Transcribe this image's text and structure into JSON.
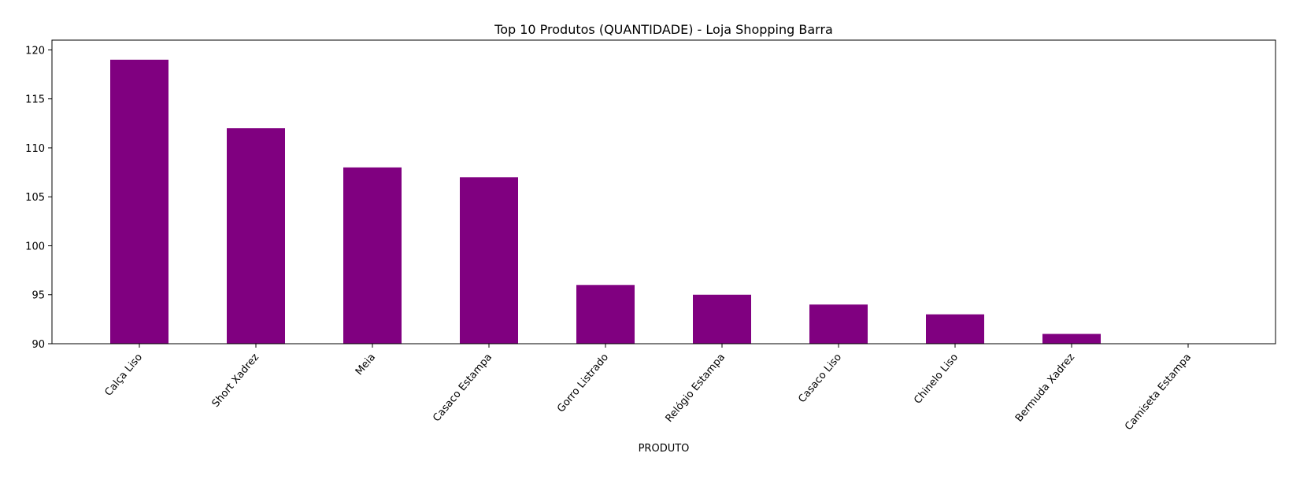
{
  "chart_data": {
    "type": "bar",
    "title": "Top 10 Produtos (QUANTIDADE) - Loja Shopping Barra",
    "xlabel": "PRODUTO",
    "ylabel": "",
    "categories": [
      "Calça Liso",
      "Short Xadrez",
      "Meia",
      "Casaco Estampa",
      "Gorro Listrado",
      "Relógio Estampa",
      "Casaco Liso",
      "Chinelo Liso",
      "Bermuda Xadrez",
      "Camiseta Estampa"
    ],
    "values": [
      119,
      112,
      108,
      107,
      96,
      95,
      94,
      93,
      91,
      90
    ],
    "ylim": [
      90,
      121
    ],
    "yticks": [
      90,
      95,
      100,
      105,
      110,
      115,
      120
    ],
    "grid": false,
    "legend": "none",
    "bar_color": "#800080"
  }
}
